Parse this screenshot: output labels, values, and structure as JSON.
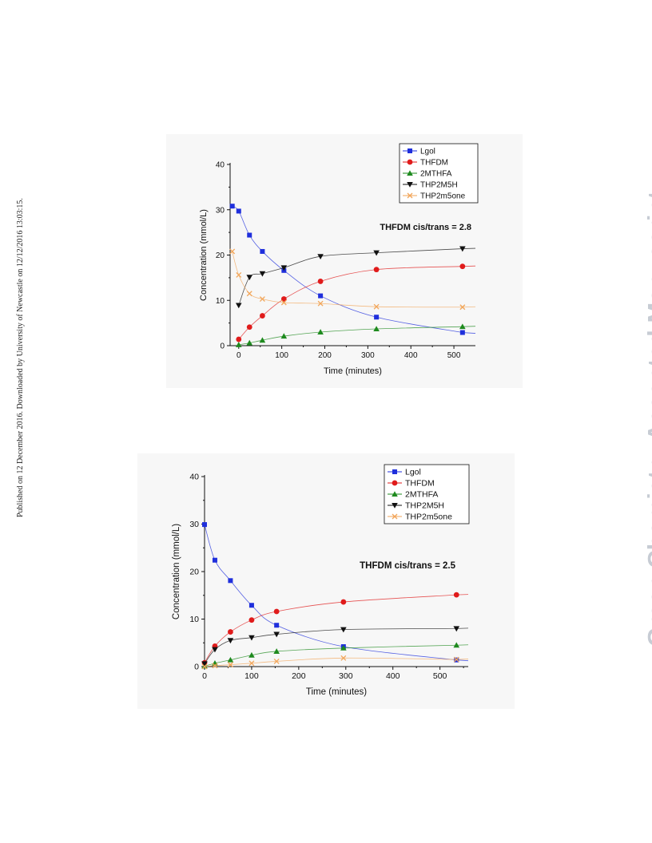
{
  "side_note": "Published on 12 December 2016. Downloaded by University of Newcastle on 12/12/2016 13:03:15.",
  "watermark": "Green Chemistry Accepted Manuscript",
  "chart_data": [
    {
      "type": "line",
      "annotation": "THFDM cis/trans = 2.8",
      "xlabel": "Time (minutes)",
      "ylabel": "Concentration (mmol/L)",
      "xlim": [
        -20,
        550
      ],
      "ylim": [
        0,
        40
      ],
      "xticks": [
        0,
        100,
        200,
        300,
        400,
        500
      ],
      "yticks": [
        0,
        10,
        20,
        30,
        40
      ],
      "xtick_labels": [
        "0",
        "100",
        "200",
        "300",
        "400",
        "500"
      ],
      "ytick_labels": [
        "0",
        "10",
        "20",
        "30",
        "40"
      ],
      "legend_position": "top-right",
      "series": [
        {
          "name": "Lgol",
          "color": "#1f2fdc",
          "marker": "square",
          "x": [
            -15,
            0,
            25,
            55,
            105,
            190,
            320,
            520
          ],
          "y": [
            30.8,
            29.7,
            24.4,
            20.8,
            16.6,
            11.0,
            6.3,
            2.9
          ]
        },
        {
          "name": "THFDM",
          "color": "#e01b1b",
          "marker": "circle",
          "x": [
            0,
            25,
            55,
            105,
            190,
            320,
            520
          ],
          "y": [
            1.4,
            4.1,
            6.6,
            10.3,
            14.2,
            16.8,
            17.5
          ]
        },
        {
          "name": "2MTHFA",
          "color": "#1e8a1e",
          "marker": "triangle-up",
          "x": [
            0,
            25,
            55,
            105,
            190,
            320,
            520
          ],
          "y": [
            0.2,
            0.6,
            1.2,
            2.1,
            3.0,
            3.7,
            4.2
          ]
        },
        {
          "name": "THP2M5H",
          "color": "#111111",
          "marker": "triangle-down",
          "x": [
            0,
            25,
            55,
            105,
            190,
            320,
            520
          ],
          "y": [
            8.9,
            15.1,
            15.9,
            17.2,
            19.7,
            20.5,
            21.4
          ]
        },
        {
          "name": "THP2m5one",
          "color": "#f2a65a",
          "marker": "x",
          "x": [
            -15,
            0,
            25,
            55,
            105,
            190,
            320,
            520
          ],
          "y": [
            20.8,
            15.6,
            11.5,
            10.3,
            9.5,
            9.3,
            8.6,
            8.5
          ]
        }
      ]
    },
    {
      "type": "line",
      "annotation": "THFDM cis/trans = 2.5",
      "xlabel": "Time (minutes)",
      "ylabel": "Concentration (mmol/L)",
      "xlim": [
        0,
        560
      ],
      "ylim": [
        0,
        40
      ],
      "xticks": [
        0,
        100,
        200,
        300,
        400,
        500
      ],
      "yticks": [
        0,
        10,
        20,
        30,
        40
      ],
      "xtick_labels": [
        "0",
        "100",
        "200",
        "300",
        "400",
        "500"
      ],
      "ytick_labels": [
        "0",
        "10",
        "20",
        "30",
        "40"
      ],
      "legend_position": "top-right",
      "series": [
        {
          "name": "Lgol",
          "color": "#1f2fdc",
          "marker": "square",
          "x": [
            0,
            22,
            55,
            100,
            153,
            295,
            535
          ],
          "y": [
            29.9,
            22.4,
            18.1,
            12.9,
            8.7,
            4.2,
            1.4
          ]
        },
        {
          "name": "THFDM",
          "color": "#e01b1b",
          "marker": "circle",
          "x": [
            0,
            22,
            55,
            100,
            153,
            295,
            535
          ],
          "y": [
            0.8,
            4.3,
            7.3,
            9.8,
            11.6,
            13.6,
            15.1
          ]
        },
        {
          "name": "2MTHFA",
          "color": "#1e8a1e",
          "marker": "triangle-up",
          "x": [
            0,
            22,
            55,
            100,
            153,
            295,
            535
          ],
          "y": [
            0.1,
            0.7,
            1.4,
            2.4,
            3.2,
            3.9,
            4.5
          ]
        },
        {
          "name": "THP2M5H",
          "color": "#111111",
          "marker": "triangle-down",
          "x": [
            0,
            22,
            55,
            100,
            153,
            295,
            535
          ],
          "y": [
            0.6,
            3.6,
            5.5,
            6.1,
            6.8,
            7.8,
            8.0
          ]
        },
        {
          "name": "THP2m5one",
          "color": "#f2a65a",
          "marker": "x",
          "x": [
            0,
            22,
            55,
            100,
            153,
            295,
            535
          ],
          "y": [
            0.0,
            0.2,
            0.4,
            0.7,
            1.1,
            1.8,
            1.5
          ]
        }
      ]
    }
  ]
}
